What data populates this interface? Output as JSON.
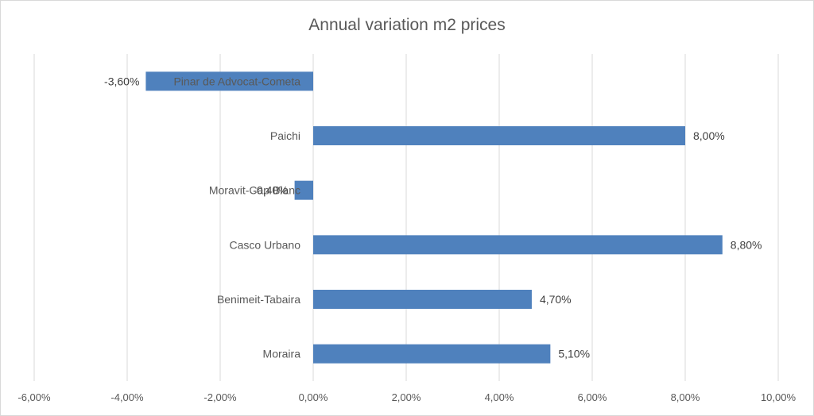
{
  "chart_data": {
    "type": "bar",
    "orientation": "horizontal",
    "title": "Annual variation m2 prices",
    "xlabel": "",
    "ylabel": "",
    "categories": [
      "Pinar de Advocat-Cometa",
      "Paichi",
      "Moravit-Cap Blanc",
      "Casco Urbano",
      "Benimeit-Tabaira",
      "Moraira"
    ],
    "values": [
      -3.6,
      8.0,
      -0.4,
      8.8,
      4.7,
      5.1
    ],
    "data_labels": [
      "-3,60%",
      "8,00%",
      "-0,40%",
      "8,80%",
      "4,70%",
      "5,10%"
    ],
    "xlim": [
      -6,
      10
    ],
    "xticks": [
      -6,
      -4,
      -2,
      0,
      2,
      4,
      6,
      8,
      10
    ],
    "xtick_labels": [
      "-6,00%",
      "-4,00%",
      "-2,00%",
      "0,00%",
      "2,00%",
      "4,00%",
      "6,00%",
      "8,00%",
      "10,00%"
    ],
    "grid": true,
    "legend": "none",
    "bar_color": "#4f81bd"
  }
}
